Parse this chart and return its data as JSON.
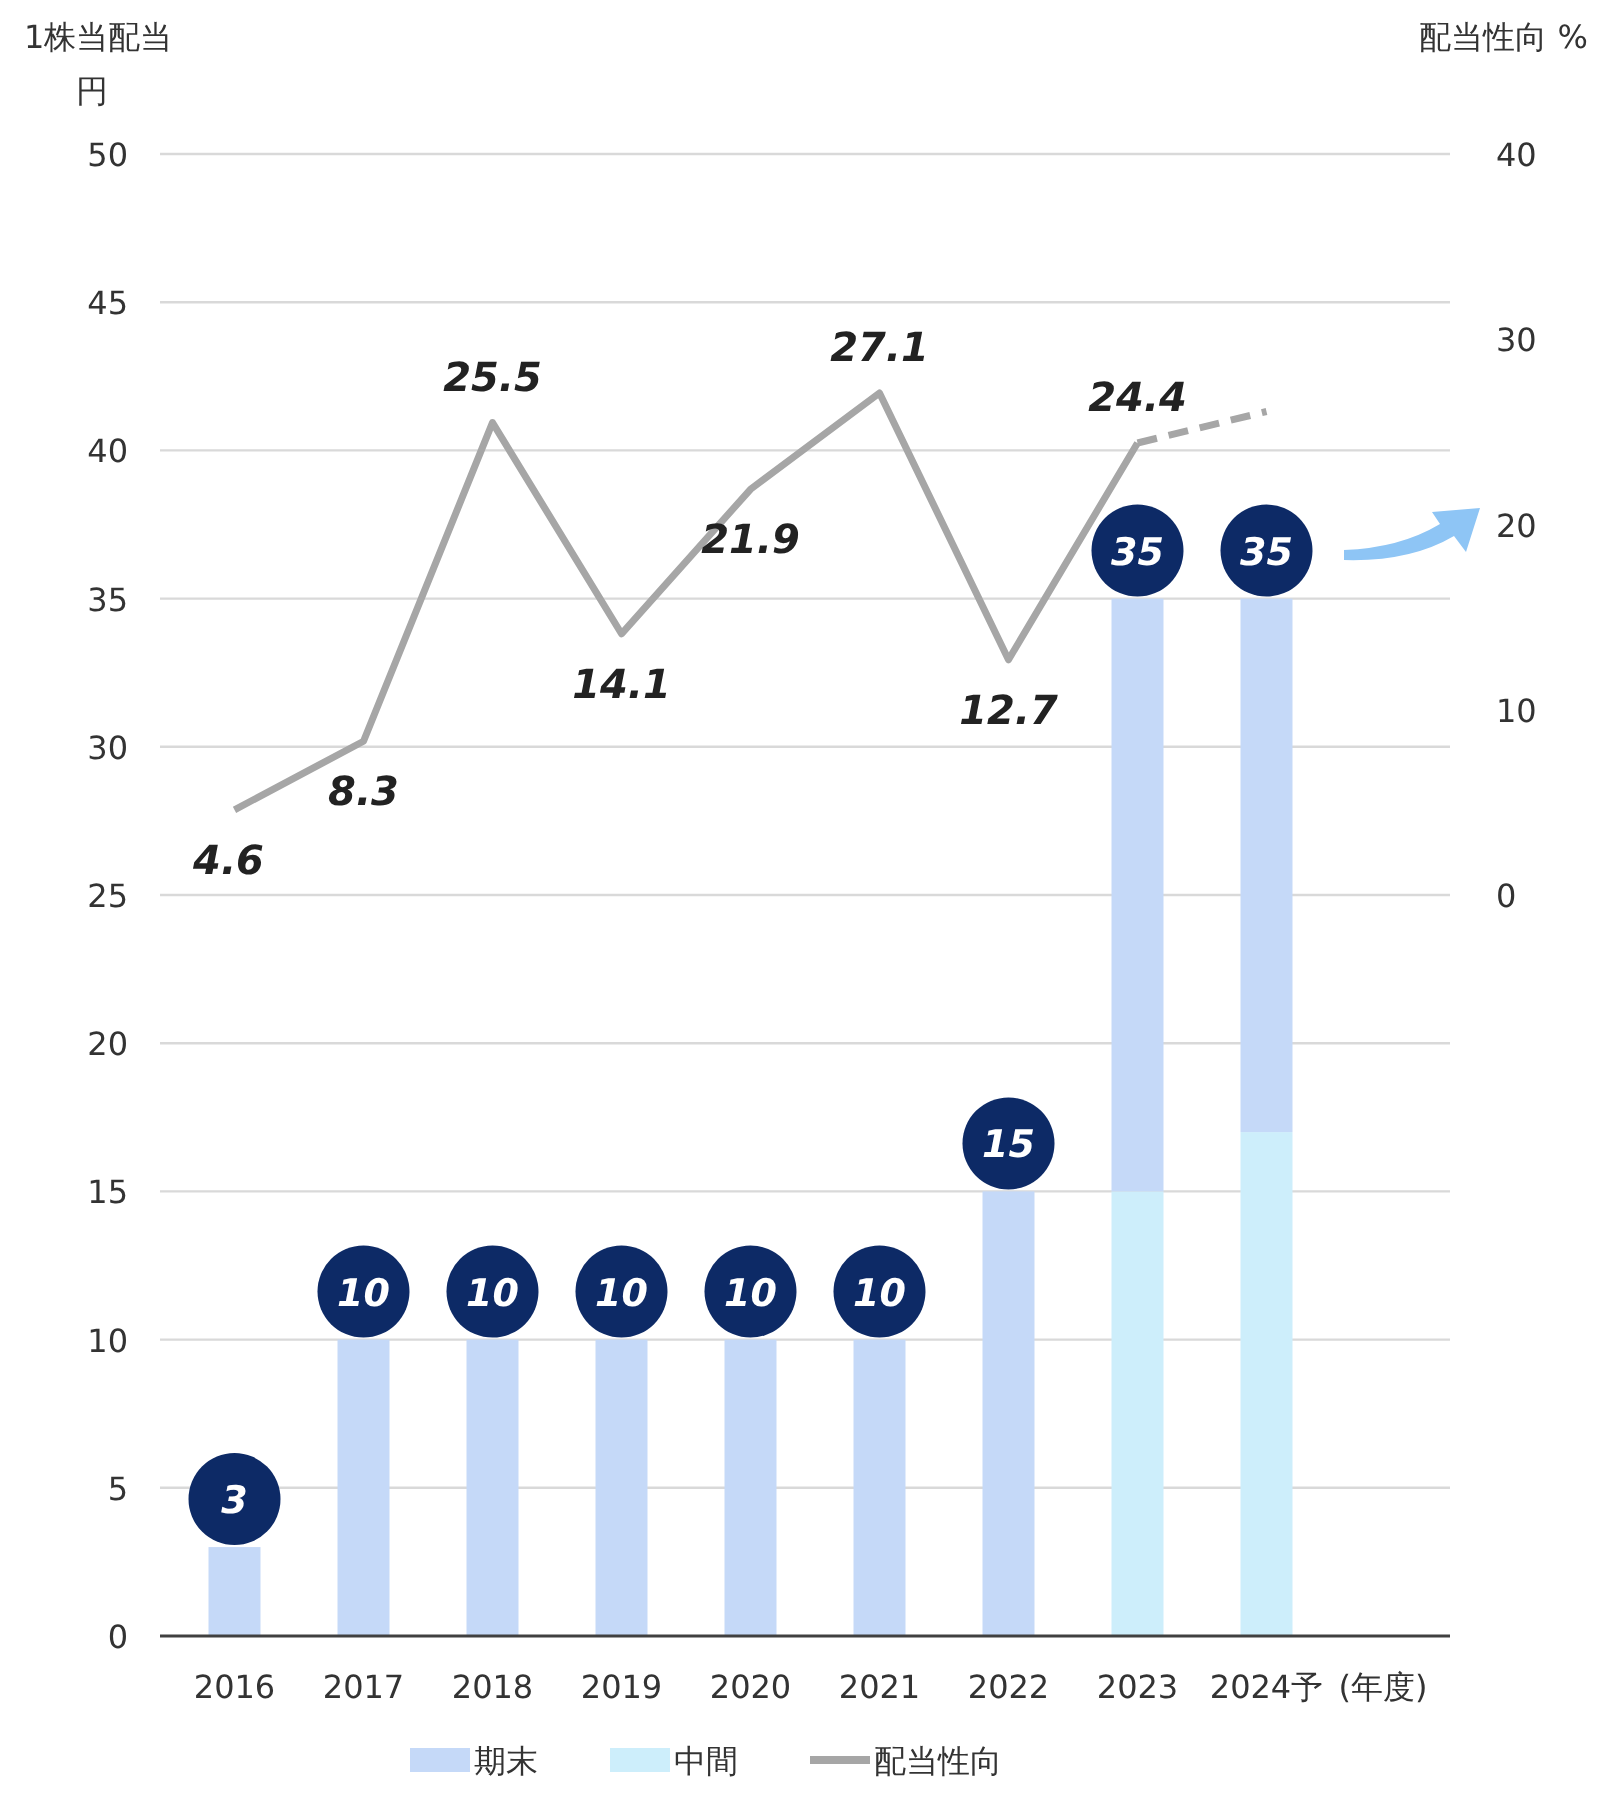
{
  "chart_data": {
    "type": "bar",
    "stacked": true,
    "ylabel": "1株当配当",
    "annotations": [
      "円"
    ],
    "y2label": "配当性向 %",
    "xlabel": "(年度)",
    "categories": [
      "2016",
      "2017",
      "2018",
      "2019",
      "2020",
      "2021",
      "2022",
      "2023",
      "2024予"
    ],
    "series": [
      {
        "name": "中間",
        "color": "#cdeefb",
        "values": [
          null,
          null,
          null,
          null,
          null,
          null,
          null,
          15,
          17
        ]
      },
      {
        "name": "期末",
        "color": "#c5d9f8",
        "values": [
          3,
          10,
          10,
          10,
          10,
          10,
          15,
          20,
          18
        ]
      },
      {
        "name": "配当性向",
        "type": "line",
        "axis": "y2",
        "color": "#a6a6a6",
        "line_style": "solid",
        "values": [
          4.6,
          8.3,
          25.5,
          14.1,
          21.9,
          27.1,
          12.7,
          24.4,
          null
        ],
        "value_labels": [
          "4.6",
          "8.3",
          "25.5",
          "14.1",
          "21.9",
          "27.1",
          "12.7",
          "24.4",
          null
        ]
      },
      {
        "type": "line",
        "axis": "y2",
        "color": "#a6a6a6",
        "line_style": "dashed",
        "values": [
          null,
          null,
          null,
          null,
          null,
          null,
          null,
          24.4,
          26.1
        ]
      }
    ],
    "totals": [
      "3",
      "10",
      "10",
      "10",
      "10",
      "10",
      "15",
      "35",
      "35"
    ],
    "ylim": [
      0,
      50
    ],
    "yticks": [
      0,
      5,
      10,
      15,
      20,
      25,
      30,
      35,
      40,
      45,
      50
    ],
    "y2lim": [
      -40,
      40
    ],
    "y2ticks": [
      0,
      10,
      20,
      30,
      40
    ],
    "grid": "y",
    "legend": "bottom"
  }
}
